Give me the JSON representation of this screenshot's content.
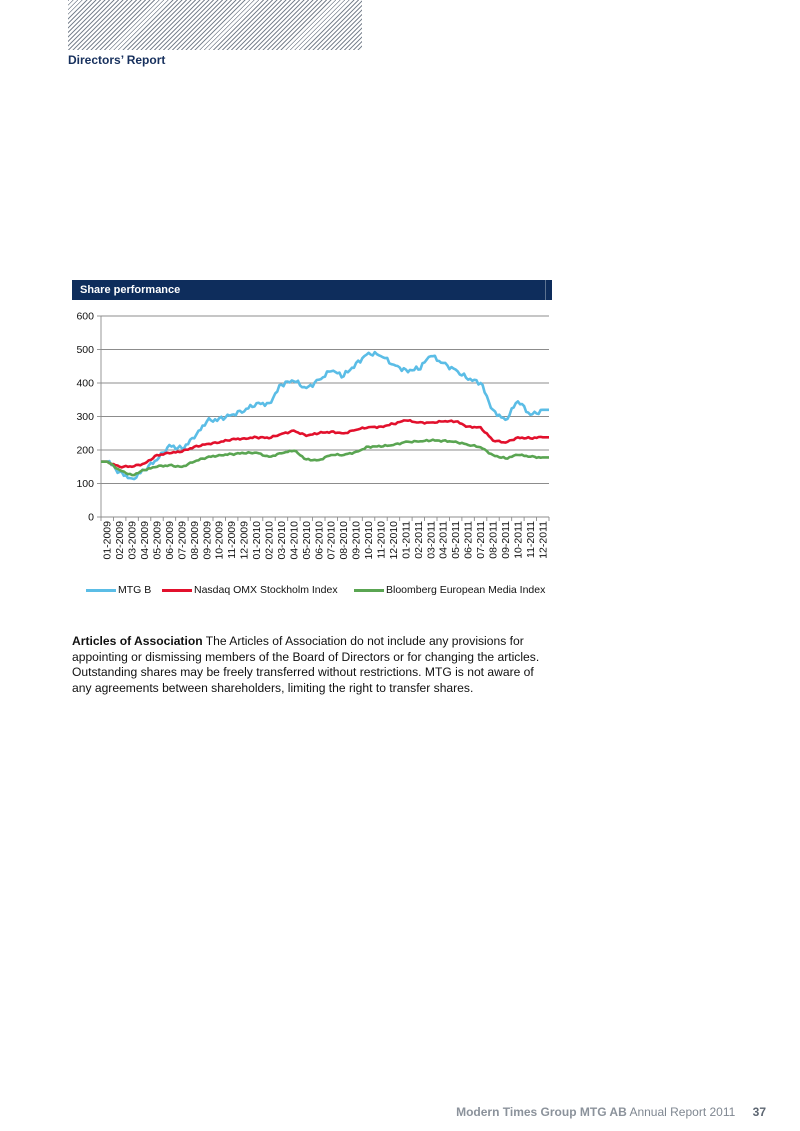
{
  "section": "Directors’ Report",
  "chart_title": "Share performance",
  "chart_data": {
    "type": "line",
    "title": "Share performance",
    "xlabel": "",
    "ylabel": "",
    "ylim": [
      0,
      600
    ],
    "yticks": [
      0,
      100,
      200,
      300,
      400,
      500,
      600
    ],
    "grid": true,
    "legend_position": "bottom",
    "categories": [
      "01-2009",
      "02-2009",
      "03-2009",
      "04-2009",
      "05-2009",
      "06-2009",
      "07-2009",
      "08-2009",
      "09-2009",
      "10-2009",
      "11-2009",
      "12-2009",
      "01-2010",
      "02-2010",
      "03-2010",
      "04-2010",
      "05-2010",
      "06-2010",
      "07-2010",
      "08-2010",
      "09-2010",
      "10-2010",
      "11-2010",
      "12-2010",
      "01-2011",
      "02-2011",
      "03-2011",
      "04-2011",
      "05-2011",
      "06-2011",
      "07-2011",
      "08-2011",
      "09-2011",
      "10-2011",
      "11-2011",
      "12-2011"
    ],
    "series": [
      {
        "name": "MTG B",
        "color": "#5bbde6",
        "values": [
          165,
          135,
          115,
          140,
          170,
          215,
          205,
          235,
          285,
          295,
          305,
          315,
          340,
          340,
          395,
          405,
          385,
          410,
          435,
          420,
          460,
          490,
          480,
          455,
          440,
          440,
          480,
          460,
          440,
          410,
          400,
          320,
          290,
          345,
          305,
          320
        ]
      },
      {
        "name": "Nasdaq OMX Stockholm Index",
        "color": "#e2102c",
        "values": [
          165,
          150,
          150,
          160,
          185,
          190,
          195,
          210,
          218,
          222,
          232,
          235,
          238,
          235,
          248,
          258,
          242,
          250,
          255,
          250,
          260,
          268,
          270,
          278,
          288,
          282,
          282,
          285,
          285,
          270,
          268,
          228,
          222,
          238,
          235,
          238
        ]
      },
      {
        "name": "Bloomberg European Media Index",
        "color": "#5aa552",
        "values": [
          165,
          140,
          125,
          140,
          150,
          155,
          150,
          165,
          178,
          185,
          188,
          190,
          192,
          180,
          190,
          198,
          172,
          170,
          185,
          185,
          195,
          210,
          210,
          215,
          225,
          225,
          228,
          228,
          225,
          215,
          208,
          185,
          175,
          185,
          180,
          178
        ]
      }
    ]
  },
  "body": {
    "heading": "Articles of Association",
    "text": " The Articles of Association do not include any provisions for appointing or dismissing members of the Board of Directors or for changing the articles. Outstanding shares may be freely transferred without restrictions. MTG is not aware of any agreements between shareholders, limiting the right to transfer shares."
  },
  "footer": {
    "company": "Modern Times Group MTG AB",
    "report": "Annual Report 2011",
    "page": "37"
  }
}
